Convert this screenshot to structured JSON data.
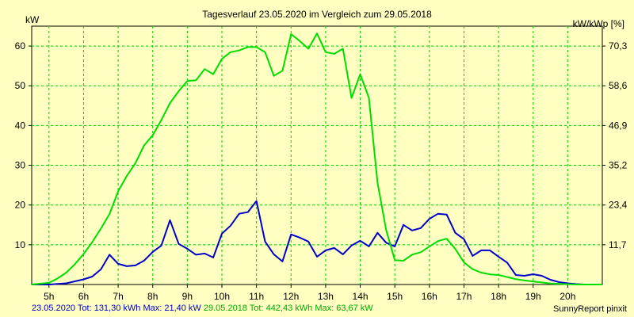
{
  "chart_data": {
    "type": "line",
    "title": "Tagesverlauf 23.05.2020 im Vergleich zum 29.05.2018",
    "ylabel_left": "kW",
    "ylabel_right": "kW/kWp [%]",
    "xlim": [
      4.5,
      21.0
    ],
    "ylim": [
      0,
      65
    ],
    "y_ticks": [
      10,
      20,
      30,
      40,
      50,
      60
    ],
    "y_ticks_right": [
      "11,7",
      "23,4",
      "35,2",
      "46,9",
      "58,6",
      "70,3"
    ],
    "x_ticks": [
      5,
      6,
      7,
      8,
      9,
      10,
      11,
      12,
      13,
      14,
      15,
      16,
      17,
      18,
      19,
      20
    ],
    "x_tick_labels": [
      "5h",
      "6h",
      "7h",
      "8h",
      "9h",
      "10h",
      "11h",
      "12h",
      "13h",
      "14h",
      "15h",
      "16h",
      "17h",
      "18h",
      "19h",
      "20h"
    ],
    "grid": true,
    "series": [
      {
        "name": "23.05.2020",
        "color": "#0000cc",
        "x": [
          4.5,
          5.0,
          5.5,
          5.75,
          6.0,
          6.25,
          6.5,
          6.75,
          7.0,
          7.25,
          7.5,
          7.75,
          8.0,
          8.25,
          8.5,
          8.75,
          9.0,
          9.25,
          9.5,
          9.75,
          10.0,
          10.25,
          10.5,
          10.75,
          11.0,
          11.25,
          11.5,
          11.75,
          12.0,
          12.25,
          12.5,
          12.75,
          13.0,
          13.25,
          13.5,
          13.75,
          14.0,
          14.25,
          14.5,
          14.75,
          15.0,
          15.25,
          15.5,
          15.75,
          16.0,
          16.25,
          16.5,
          16.75,
          17.0,
          17.25,
          17.5,
          17.75,
          18.0,
          18.25,
          18.5,
          18.75,
          19.0,
          19.25,
          19.5,
          19.75,
          20.0,
          20.25,
          20.5,
          20.75,
          21.0
        ],
        "values": [
          0,
          0,
          0.3,
          0.8,
          1.3,
          2.0,
          3.8,
          7.5,
          5.2,
          4.6,
          4.8,
          6.0,
          8.2,
          9.8,
          16.2,
          10.2,
          9.0,
          7.5,
          7.8,
          6.8,
          12.8,
          14.8,
          17.8,
          18.2,
          21.0,
          10.8,
          7.6,
          5.8,
          12.6,
          11.8,
          10.8,
          7.0,
          8.6,
          9.2,
          7.6,
          9.8,
          11.0,
          9.6,
          13.0,
          10.5,
          9.6,
          15.0,
          13.6,
          14.2,
          16.5,
          17.8,
          17.6,
          13.0,
          11.4,
          7.2,
          8.6,
          8.6,
          7.0,
          5.5,
          2.4,
          2.2,
          2.6,
          2.2,
          1.2,
          0.6,
          0.3,
          0.1,
          0,
          0,
          0
        ]
      },
      {
        "name": "29.05.2018",
        "color": "#00dd00",
        "x": [
          4.5,
          5.0,
          5.25,
          5.5,
          5.75,
          6.0,
          6.25,
          6.5,
          6.75,
          7.0,
          7.25,
          7.5,
          7.75,
          8.0,
          8.25,
          8.5,
          8.75,
          9.0,
          9.25,
          9.5,
          9.75,
          10.0,
          10.25,
          10.5,
          10.75,
          11.0,
          11.25,
          11.5,
          11.75,
          12.0,
          12.25,
          12.5,
          12.75,
          13.0,
          13.25,
          13.5,
          13.75,
          14.0,
          14.25,
          14.5,
          14.75,
          15.0,
          15.25,
          15.5,
          15.75,
          16.0,
          16.25,
          16.5,
          16.75,
          17.0,
          17.25,
          17.5,
          17.75,
          18.0,
          18.25,
          18.5,
          18.75,
          19.0,
          19.25,
          19.5,
          19.75,
          20.0,
          20.25,
          20.5,
          21.0
        ],
        "values": [
          0,
          0.5,
          1.8,
          3.5,
          6.0,
          9.0,
          12.5,
          16.5,
          20.8,
          27.5,
          32.0,
          35.8,
          41.0,
          44.0,
          48.5,
          53.5,
          57.0,
          60.0,
          60.2,
          63.5,
          62.0,
          66.5,
          68.5,
          69.0,
          70.0,
          70.0,
          68.5,
          61.5,
          63.0,
          73.8,
          71.8,
          69.5,
          74.0,
          68.5,
          68.0,
          69.5,
          55.0,
          62.0,
          55.0,
          30.0,
          16.0,
          7.2,
          7.0,
          8.8,
          9.5,
          11.2,
          12.8,
          13.5,
          10.5,
          6.5,
          4.5,
          3.5,
          3.0,
          2.8,
          2.2,
          1.6,
          1.2,
          0.9,
          0.6,
          0.3,
          0.2,
          0.1,
          0,
          0,
          0
        ],
        "axis": "right_percent"
      }
    ],
    "footer": {
      "s1_label": "23.05.2020 Tot: 131,30 kWh Max: 21,40 kW",
      "s2_label": "29.05.2018 Tot: 442,43 kWh Max: 63,67 kW",
      "brand": "SunnyReport pinxit"
    }
  }
}
